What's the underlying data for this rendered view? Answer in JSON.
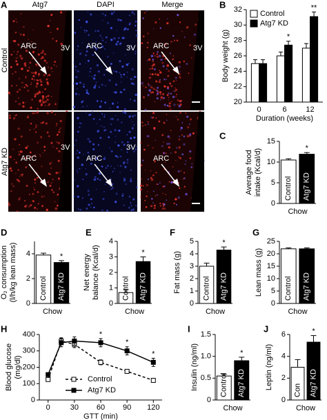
{
  "image_panel": {
    "label": "A",
    "columns": [
      "Atg7",
      "DAPI",
      "Merge"
    ],
    "rows": [
      "Control",
      "Atg7 KD"
    ],
    "region_labels": [
      "ARC",
      "3V"
    ]
  },
  "chart_data": [
    {
      "type": "grouped_bar",
      "panel": "B",
      "ylabel": [
        "Body weight (g)"
      ],
      "xlabel": "Duration (weeks)",
      "categories": [
        "0",
        "6",
        "12"
      ],
      "series": [
        {
          "name": "Control",
          "color": "#ffffff",
          "values": [
            25,
            26,
            27
          ],
          "errors": [
            0.5,
            0.5,
            0.6
          ]
        },
        {
          "name": "Atg7 KD",
          "color": "#000000",
          "values": [
            25,
            27.4,
            31.1
          ],
          "errors": [
            0.5,
            0.5,
            0.6
          ]
        }
      ],
      "annotations": [
        {
          "text": "*",
          "category": "6"
        },
        {
          "text": "**",
          "category": "12"
        }
      ],
      "ylim": [
        20,
        32
      ],
      "yticks": [
        20,
        22,
        24,
        26,
        28,
        30,
        32
      ]
    },
    {
      "type": "bar",
      "panel": "C",
      "ylabel": [
        "Average food",
        "intake (Kcal/d)"
      ],
      "xlabel": "Chow",
      "categories": [
        "Control",
        "Atg7 KD"
      ],
      "colors": [
        "#ffffff",
        "#000000"
      ],
      "values": [
        10.5,
        11.9
      ],
      "errors": [
        0.3,
        0.4
      ],
      "annotations": [
        {
          "text": "*",
          "category": "Atg7 KD"
        }
      ],
      "ylim": [
        0,
        15
      ],
      "yticks": [
        0,
        5,
        10,
        15
      ]
    },
    {
      "type": "bar",
      "panel": "D",
      "ylabel": [
        "O₂ consumption",
        "(l/h/kg lean mass)"
      ],
      "xlabel": "Chow",
      "categories": [
        "Control",
        "Atg7 KD"
      ],
      "colors": [
        "#ffffff",
        "#000000"
      ],
      "values": [
        3.9,
        3.3
      ],
      "errors": [
        0.15,
        0.15
      ],
      "annotations": [
        {
          "text": "*",
          "category": "Atg7 KD"
        }
      ],
      "ylim": [
        0,
        5
      ],
      "yticks": [
        0,
        2,
        4
      ]
    },
    {
      "type": "bar",
      "panel": "E",
      "ylabel": [
        "Net energy",
        "balance (Kcal/d)"
      ],
      "xlabel": "Chow",
      "categories": [
        "Control",
        "Atg7 KD"
      ],
      "colors": [
        "#ffffff",
        "#000000"
      ],
      "values": [
        0.7,
        2.7
      ],
      "errors": [
        0.2,
        0.3
      ],
      "annotations": [
        {
          "text": "*",
          "category": "Atg7 KD"
        }
      ],
      "ylim": [
        0,
        4
      ],
      "yticks": [
        0,
        1,
        2,
        3,
        4
      ]
    },
    {
      "type": "bar",
      "panel": "F",
      "ylabel": [
        "Fat mass (g)"
      ],
      "xlabel": "Chow",
      "categories": [
        "Control",
        "Atg7 KD"
      ],
      "colors": [
        "#ffffff",
        "#000000"
      ],
      "values": [
        3.0,
        4.3
      ],
      "errors": [
        0.25,
        0.25
      ],
      "annotations": [
        {
          "text": "*",
          "category": "Atg7 KD"
        }
      ],
      "ylim": [
        0,
        5
      ],
      "yticks": [
        0,
        1,
        2,
        3,
        4,
        5
      ]
    },
    {
      "type": "bar",
      "panel": "G",
      "ylabel": [
        "Lean mass (g)"
      ],
      "xlabel": "Chow",
      "categories": [
        "Control",
        "Atg7 KD"
      ],
      "colors": [
        "#ffffff",
        "#000000"
      ],
      "values": [
        22,
        22
      ],
      "errors": [
        0.4,
        0.4
      ],
      "ylim": [
        0,
        25
      ],
      "yticks": [
        0,
        5,
        10,
        15,
        20,
        25
      ]
    },
    {
      "type": "line",
      "panel": "H",
      "ylabel": [
        "Blood glucose",
        "(mg/dl)"
      ],
      "xlabel": "GTT (min)",
      "x": [
        0,
        15,
        30,
        60,
        90,
        120
      ],
      "series": [
        {
          "name": "Control",
          "color": "#000000",
          "dashed": true,
          "filled": false,
          "values": [
            125,
            360,
            340,
            230,
            175,
            120
          ],
          "errors": [
            10,
            20,
            20,
            15,
            12,
            10
          ]
        },
        {
          "name": "Atg7 KD",
          "color": "#000000",
          "dashed": false,
          "filled": true,
          "values": [
            155,
            350,
            360,
            350,
            300,
            230
          ],
          "errors": [
            10,
            25,
            25,
            25,
            25,
            25
          ]
        }
      ],
      "annotations": [
        {
          "text": "*",
          "x": 60
        },
        {
          "text": "*",
          "x": 90
        },
        {
          "text": "*",
          "x": 120
        }
      ],
      "xlim": [
        -10,
        130
      ],
      "xticks": [
        0,
        30,
        60,
        90,
        120
      ],
      "ylim": [
        0,
        400
      ],
      "yticks": [
        0,
        100,
        200,
        300,
        400
      ]
    },
    {
      "type": "bar",
      "panel": "I",
      "ylabel": [
        "Insulin (ng/ml)"
      ],
      "xlabel": "Chow",
      "categories": [
        "Control",
        "Atg7 KD"
      ],
      "colors": [
        "#ffffff",
        "#000000"
      ],
      "values": [
        0.55,
        0.9
      ],
      "errors": [
        0.04,
        0.08
      ],
      "annotations": [
        {
          "text": "*",
          "category": "Atg7 KD"
        }
      ],
      "ylim": [
        0,
        1.5
      ],
      "yticks": [
        0,
        {
          "value": 0.5,
          "label": "0.5"
        },
        {
          "value": 1,
          "label": "1.0"
        },
        {
          "value": 1.5,
          "label": "1.5"
        }
      ]
    },
    {
      "type": "bar",
      "panel": "J",
      "ylabel": [
        "Leptin (ng/ml)"
      ],
      "xlabel": "Chow",
      "categories": [
        "Con",
        "Atg7 KD"
      ],
      "colors": [
        "#ffffff",
        "#000000"
      ],
      "values": [
        3.0,
        5.3
      ],
      "errors": [
        0.7,
        0.6
      ],
      "annotations": [
        {
          "text": "*",
          "category": "Atg7 KD"
        }
      ],
      "ylim": [
        0,
        6
      ],
      "yticks": [
        0,
        2,
        4,
        6
      ]
    }
  ]
}
